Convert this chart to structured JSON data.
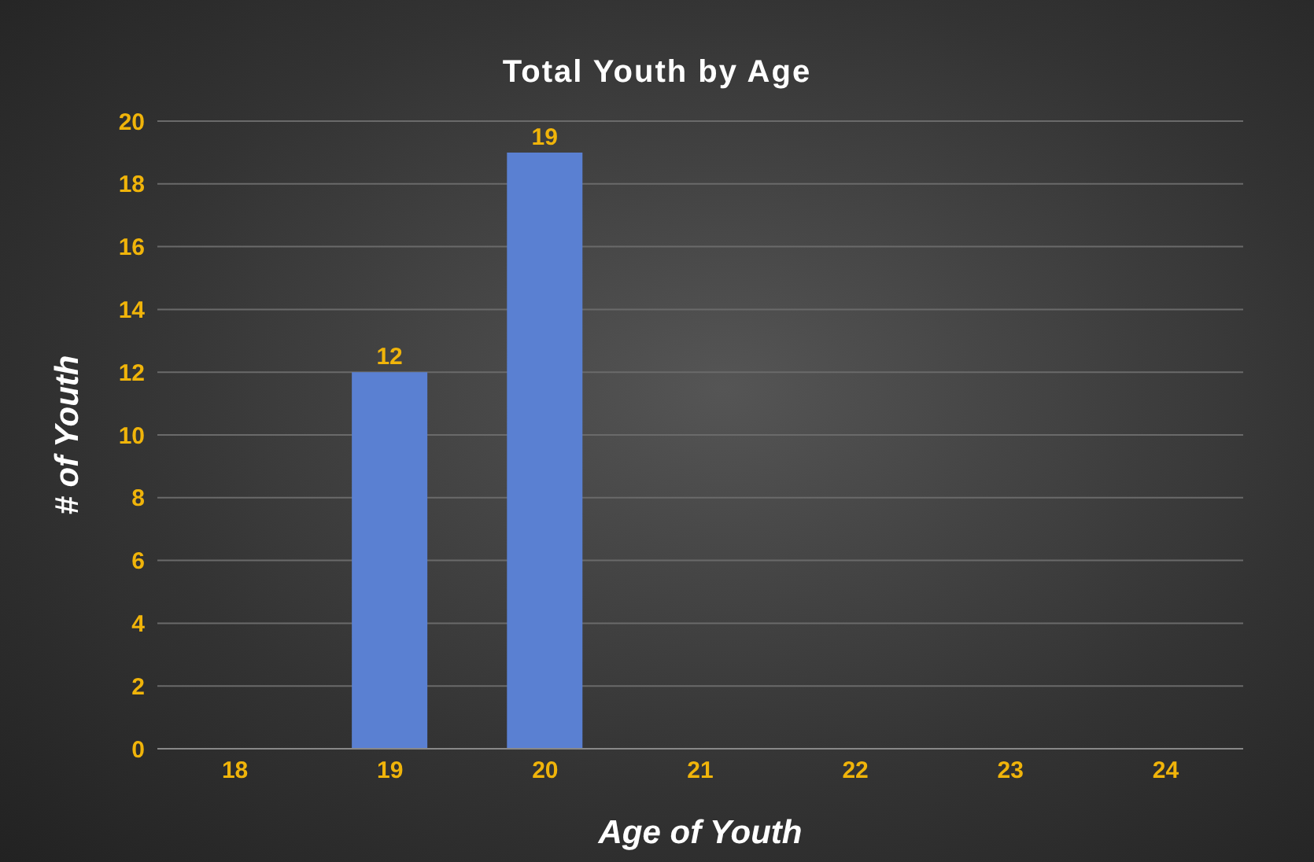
{
  "chart_data": {
    "type": "bar",
    "title": "Total Youth by Age",
    "xlabel": "Age of Youth",
    "ylabel": "# of Youth",
    "categories": [
      "18",
      "19",
      "20",
      "21",
      "22",
      "23",
      "24"
    ],
    "values": [
      null,
      12,
      19,
      null,
      null,
      null,
      null
    ],
    "color": "#5a80d2",
    "ylim": [
      0,
      20
    ],
    "yticks": [
      0,
      2,
      4,
      6,
      8,
      10,
      12,
      14,
      16,
      18,
      20
    ],
    "grid": "y",
    "data_labels": true,
    "legend": false
  }
}
